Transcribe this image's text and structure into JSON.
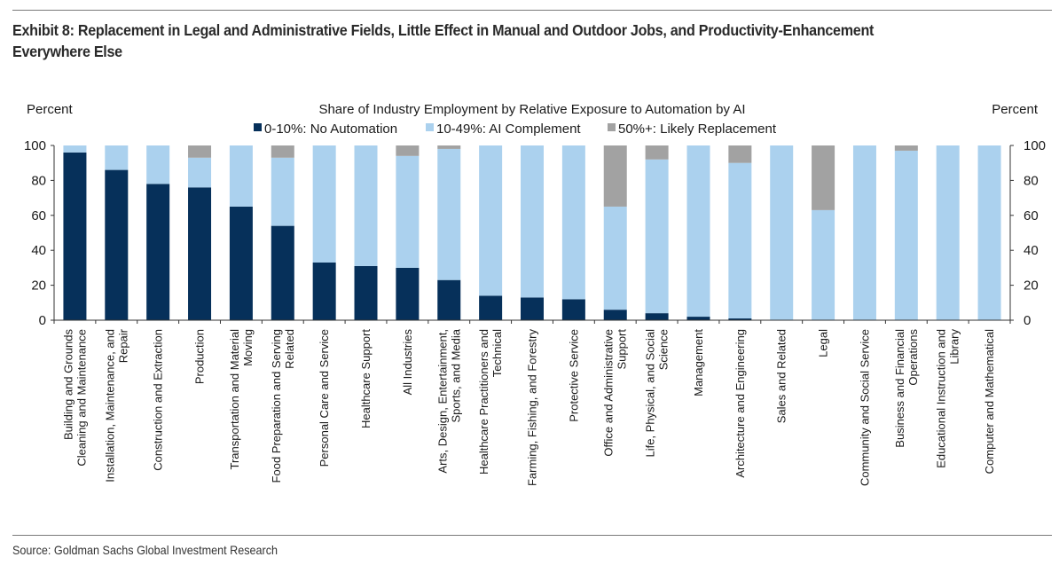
{
  "header": {
    "title": "Exhibit 8: Replacement in Legal and Administrative Fields, Little Effect in Manual and Outdoor Jobs, and Productivity-Enhancement Everywhere Else"
  },
  "footer": {
    "source": "Source: Goldman Sachs Global Investment Research"
  },
  "colors": {
    "no_automation": "#06305a",
    "ai_complement": "#abd1ee",
    "likely_replacement": "#a2a2a2",
    "axis": "#333333"
  },
  "chart_data": {
    "type": "bar",
    "stacked": true,
    "title": "Share of Industry Employment by Relative Exposure to Automation by AI",
    "ylabel_left": "Percent",
    "ylabel_right": "Percent",
    "xlabel": "",
    "ylim": [
      0,
      100
    ],
    "yticks": [
      0,
      20,
      40,
      60,
      80,
      100
    ],
    "grid": false,
    "legend_position": "top-center",
    "categories": [
      [
        "Building and Grounds",
        "Cleaning and Maintenance"
      ],
      [
        "Installation, Maintenance, and",
        "Repair"
      ],
      [
        "Construction and Extraction"
      ],
      [
        "Production"
      ],
      [
        "Transportation and Material",
        "Moving"
      ],
      [
        "Food Preparation and Serving",
        "Related"
      ],
      [
        "Personal Care and Service"
      ],
      [
        "Healthcare Support"
      ],
      [
        "All Industries"
      ],
      [
        "Arts, Design, Entertainment,",
        "Sports, and Media"
      ],
      [
        "Healthcare Practitioners and",
        "Technical"
      ],
      [
        "Farming, Fishing, and Forestry"
      ],
      [
        "Protective Service"
      ],
      [
        "Office and Administrative",
        "Support"
      ],
      [
        "Life, Physical, and Social",
        "Science"
      ],
      [
        "Management"
      ],
      [
        "Architecture and Engineering"
      ],
      [
        "Sales and Related"
      ],
      [
        "Legal"
      ],
      [
        "Community and Social Service"
      ],
      [
        "Business and Financial",
        "Operations"
      ],
      [
        "Educational Instruction and",
        "Library"
      ],
      [
        "Computer and Mathematical"
      ]
    ],
    "series": [
      {
        "name": "0-10%: No Automation",
        "color_key": "no_automation",
        "values": [
          96,
          86,
          78,
          76,
          65,
          54,
          33,
          31,
          30,
          23,
          14,
          13,
          12,
          6,
          4,
          2,
          1,
          0,
          0,
          0,
          0,
          0,
          0
        ]
      },
      {
        "name": "10-49%: AI Complement",
        "color_key": "ai_complement",
        "values": [
          4,
          14,
          22,
          17,
          35,
          39,
          67,
          69,
          64,
          75,
          86,
          87,
          88,
          59,
          88,
          98,
          89,
          100,
          63,
          100,
          97,
          100,
          100
        ]
      },
      {
        "name": "50%+: Likely Replacement",
        "color_key": "likely_replacement",
        "values": [
          0,
          0,
          0,
          7,
          0,
          7,
          0,
          0,
          6,
          2,
          0,
          0,
          0,
          35,
          8,
          0,
          10,
          0,
          37,
          0,
          3,
          0,
          0
        ]
      }
    ]
  }
}
